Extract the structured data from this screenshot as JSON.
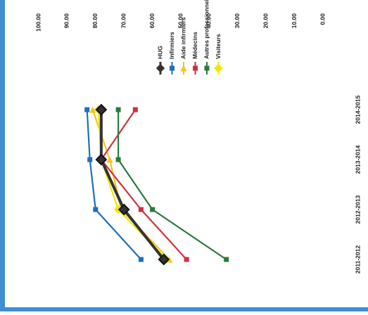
{
  "chart_data": {
    "type": "line",
    "orientation": "rotated-90-ccw",
    "categories": [
      "2011-2012",
      "2012-2013",
      "2013-2014",
      "2014-2015"
    ],
    "ylim": [
      0,
      100
    ],
    "yticks": [
      "0.00",
      "10.00",
      "20.00",
      "30.00",
      "40.00",
      "50.00",
      "60.00",
      "70.00",
      "80.00",
      "90.00",
      "100.00"
    ],
    "grid": false,
    "legend_position": "top-right",
    "series": [
      {
        "name": "HUG",
        "color": "#333333",
        "marker": "diamond",
        "values": [
          56,
          70,
          78,
          78
        ]
      },
      {
        "name": "Infirmiers",
        "color": "#1f6fb8",
        "marker": "square",
        "values": [
          64,
          80,
          82,
          83
        ]
      },
      {
        "name": "Aide infirmiers",
        "color": "#f5c518",
        "marker": "triangle",
        "values": [
          54,
          71,
          75,
          81
        ]
      },
      {
        "name": "Médecins",
        "color": "#d42e3c",
        "marker": "square",
        "values": [
          48,
          64,
          78,
          66
        ]
      },
      {
        "name": "Autres professionnels",
        "color": "#2a7a3b",
        "marker": "square",
        "values": [
          34,
          60,
          72,
          72
        ]
      },
      {
        "name": "Visiteurs",
        "color": "#f2e600",
        "marker": "diamond",
        "values": [
          55,
          72,
          78,
          79
        ]
      }
    ]
  }
}
